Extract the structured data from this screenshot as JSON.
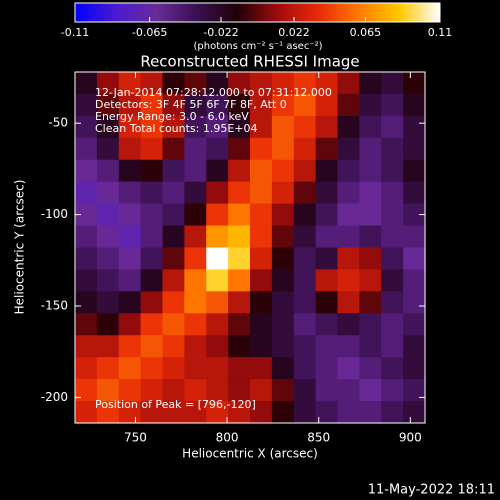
{
  "chart_data": {
    "type": "heatmap",
    "title": "Reconstructed RHESSI Image",
    "xlabel": "Heliocentric X (arcsec)",
    "ylabel": "Heliocentric Y (arcsec)",
    "annotations": [
      "12-Jan-2014 07:28:12.000 to 07:31:12.000",
      "Detectors: 3F 4F 5F 6F 7F 8F, Att 0",
      "Energy Range: 3.0 - 6.0 keV",
      "Clean    Total counts: 1.95E+04"
    ],
    "peak_label": "Position of Peak = [796,-120]",
    "footer": "11-May-2022 18:11",
    "xlim": [
      717,
      908
    ],
    "xticks": [
      750,
      800,
      850,
      900
    ],
    "ylim": [
      -214,
      -22
    ],
    "yticks": [
      -50,
      -100,
      -150,
      -200
    ],
    "colorbar": {
      "label": "(photons cm⁻² s⁻¹ asec⁻²)",
      "range": [
        -0.11,
        0.11
      ],
      "ticks": [
        -0.11,
        -0.065,
        -0.022,
        0.022,
        0.065,
        0.11
      ],
      "colormap": [
        "#0000ff",
        "#4a1ad0",
        "#6a2a9a",
        "#3a1050",
        "#200008",
        "#a00c0c",
        "#e82a08",
        "#ff7a00",
        "#ffc800",
        "#ffffff"
      ]
    },
    "z": [
      [
        -0.02,
        0.01,
        0.03,
        0.02,
        -0.01,
        0.0,
        -0.02,
        0.01,
        0.02,
        0.03,
        0.04,
        0.03,
        0.01,
        -0.02,
        -0.03,
        -0.01
      ],
      [
        -0.03,
        0.0,
        0.02,
        0.04,
        0.01,
        -0.03,
        -0.04,
        -0.01,
        0.02,
        0.04,
        0.05,
        0.03,
        0.0,
        -0.03,
        -0.04,
        -0.02
      ],
      [
        -0.04,
        -0.02,
        0.03,
        0.04,
        0.02,
        -0.04,
        -0.05,
        -0.02,
        0.02,
        0.05,
        0.04,
        0.02,
        -0.02,
        -0.04,
        -0.05,
        -0.03
      ],
      [
        -0.05,
        -0.03,
        0.02,
        0.03,
        0.0,
        -0.05,
        -0.04,
        0.0,
        0.04,
        0.05,
        0.03,
        0.0,
        -0.03,
        -0.05,
        -0.04,
        -0.03
      ],
      [
        -0.06,
        -0.05,
        -0.02,
        -0.01,
        -0.04,
        -0.05,
        -0.02,
        0.02,
        0.05,
        0.04,
        0.02,
        -0.02,
        -0.04,
        -0.05,
        -0.04,
        -0.02
      ],
      [
        -0.07,
        -0.06,
        -0.05,
        -0.04,
        -0.05,
        -0.03,
        0.01,
        0.04,
        0.05,
        0.03,
        0.0,
        -0.03,
        -0.05,
        -0.06,
        -0.05,
        -0.03
      ],
      [
        -0.06,
        -0.07,
        -0.06,
        -0.05,
        -0.04,
        -0.01,
        0.04,
        0.06,
        0.04,
        0.01,
        -0.02,
        -0.04,
        -0.06,
        -0.06,
        -0.05,
        -0.04
      ],
      [
        -0.05,
        -0.06,
        -0.07,
        -0.05,
        -0.02,
        0.02,
        0.07,
        0.08,
        0.04,
        0.0,
        -0.03,
        -0.05,
        -0.05,
        -0.04,
        -0.05,
        -0.05
      ],
      [
        -0.04,
        -0.05,
        -0.06,
        -0.04,
        0.0,
        0.04,
        0.11,
        0.09,
        0.03,
        -0.01,
        -0.04,
        -0.03,
        0.02,
        0.01,
        -0.04,
        -0.06
      ],
      [
        -0.03,
        -0.04,
        -0.05,
        -0.02,
        0.02,
        0.06,
        0.09,
        0.06,
        0.01,
        -0.02,
        -0.04,
        0.02,
        0.03,
        0.02,
        -0.03,
        -0.05
      ],
      [
        -0.02,
        -0.03,
        -0.02,
        0.01,
        0.04,
        0.06,
        0.05,
        0.02,
        -0.01,
        -0.03,
        -0.04,
        -0.01,
        0.02,
        0.0,
        -0.04,
        -0.05
      ],
      [
        0.0,
        -0.01,
        0.01,
        0.04,
        0.05,
        0.04,
        0.02,
        0.0,
        -0.02,
        -0.03,
        -0.05,
        -0.04,
        -0.03,
        -0.04,
        -0.05,
        -0.04
      ],
      [
        0.02,
        0.02,
        0.04,
        0.05,
        0.04,
        0.02,
        0.01,
        -0.01,
        -0.02,
        -0.03,
        -0.04,
        -0.05,
        -0.05,
        -0.04,
        -0.05,
        -0.03
      ],
      [
        0.03,
        0.04,
        0.05,
        0.04,
        0.03,
        0.02,
        0.02,
        0.01,
        0.01,
        -0.02,
        -0.04,
        -0.05,
        -0.06,
        -0.05,
        -0.04,
        -0.03
      ],
      [
        0.04,
        0.05,
        0.04,
        0.03,
        0.02,
        0.03,
        0.02,
        0.01,
        0.02,
        0.0,
        -0.03,
        -0.05,
        -0.05,
        -0.06,
        -0.05,
        -0.04
      ],
      [
        0.03,
        0.04,
        0.03,
        0.02,
        0.02,
        0.02,
        0.03,
        0.02,
        0.01,
        -0.01,
        -0.03,
        -0.04,
        -0.05,
        -0.05,
        -0.04,
        -0.03
      ]
    ]
  }
}
